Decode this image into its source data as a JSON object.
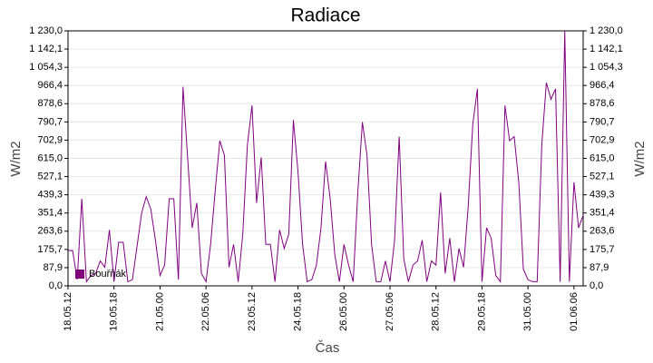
{
  "chart_data": {
    "type": "line",
    "title": "Radiace",
    "x_label": "Čas",
    "y_label": "W/m2",
    "x": [
      "18.05.12",
      "18.05.15",
      "18.05.18",
      "18.05.21",
      "19.05.00",
      "19.05.03",
      "19.05.06",
      "19.05.09",
      "19.05.12",
      "19.05.15",
      "19.05.18",
      "19.05.21",
      "20.05.00",
      "20.05.03",
      "20.05.06",
      "20.05.09",
      "20.05.12",
      "20.05.15",
      "20.05.18",
      "20.05.21",
      "21.05.00",
      "21.05.03",
      "21.05.06",
      "21.05.09",
      "21.05.12",
      "21.05.15",
      "21.05.18",
      "21.05.21",
      "22.05.00",
      "22.05.03",
      "22.05.06",
      "22.05.09",
      "22.05.12",
      "22.05.15",
      "22.05.18",
      "22.05.21",
      "23.05.00",
      "23.05.03",
      "23.05.06",
      "23.05.09",
      "23.05.12",
      "23.05.15",
      "23.05.18",
      "23.05.21",
      "24.05.00",
      "24.05.03",
      "24.05.06",
      "24.05.09",
      "24.05.12",
      "24.05.15",
      "24.05.18",
      "24.05.21",
      "25.05.00",
      "25.05.03",
      "25.05.06",
      "25.05.09",
      "25.05.12",
      "25.05.15",
      "25.05.18",
      "25.05.21",
      "26.05.00",
      "26.05.03",
      "26.05.06",
      "26.05.09",
      "26.05.12",
      "26.05.15",
      "26.05.18",
      "26.05.21",
      "27.05.00",
      "27.05.03",
      "27.05.06",
      "27.05.09",
      "27.05.12",
      "27.05.15",
      "27.05.18",
      "27.05.21",
      "28.05.00",
      "28.05.03",
      "28.05.06",
      "28.05.09",
      "28.05.12",
      "28.05.15",
      "28.05.18",
      "28.05.21",
      "29.05.00",
      "29.05.03",
      "29.05.06",
      "29.05.09",
      "29.05.12",
      "29.05.15",
      "29.05.18",
      "29.05.21",
      "30.05.00",
      "30.05.03",
      "30.05.06",
      "30.05.09",
      "30.05.12",
      "30.05.15",
      "30.05.18",
      "30.05.21",
      "31.05.00",
      "31.05.03",
      "31.05.06",
      "31.05.09",
      "31.05.12",
      "31.05.15",
      "31.05.18",
      "31.05.21",
      "01.06.00",
      "01.06.03",
      "01.06.06",
      "01.06.09",
      "01.06.12"
    ],
    "series": [
      {
        "name": "Bouřňák",
        "color": "#800080",
        "values": [
          170,
          170,
          30,
          420,
          20,
          50,
          60,
          120,
          90,
          270,
          20,
          210,
          210,
          20,
          30,
          190,
          350,
          430,
          370,
          220,
          50,
          100,
          420,
          420,
          30,
          960,
          620,
          280,
          400,
          60,
          20,
          200,
          460,
          700,
          630,
          90,
          200,
          20,
          250,
          680,
          870,
          400,
          620,
          200,
          200,
          20,
          270,
          180,
          250,
          800,
          550,
          200,
          20,
          30,
          100,
          280,
          600,
          420,
          150,
          20,
          200,
          100,
          20,
          450,
          790,
          630,
          200,
          20,
          20,
          120,
          20,
          220,
          720,
          130,
          20,
          100,
          120,
          220,
          20,
          120,
          100,
          450,
          60,
          230,
          20,
          180,
          90,
          380,
          780,
          950,
          20,
          280,
          230,
          50,
          20,
          870,
          700,
          720,
          500,
          80,
          30,
          20,
          20,
          680,
          980,
          900,
          950,
          20,
          1230,
          20,
          500,
          280,
          340
        ]
      }
    ],
    "xlim": [
      "18.05.12",
      "01.06.12"
    ],
    "xticks": [
      "18.05.12",
      "19.05.18",
      "21.05.00",
      "22.05.06",
      "23.05.12",
      "24.05.18",
      "26.05.00",
      "27.05.06",
      "28.05.12",
      "29.05.18",
      "31.05.00",
      "01.06.06"
    ],
    "ylim": [
      0,
      1230
    ],
    "yticks": [
      {
        "value": 0,
        "label": "0,0"
      },
      {
        "value": 87.86,
        "label": "87,9"
      },
      {
        "value": 175.71,
        "label": "175,7"
      },
      {
        "value": 263.57,
        "label": "263,6"
      },
      {
        "value": 351.43,
        "label": "351,4"
      },
      {
        "value": 439.29,
        "label": "439,3"
      },
      {
        "value": 527.14,
        "label": "527,1"
      },
      {
        "value": 615,
        "label": "615,0"
      },
      {
        "value": 702.86,
        "label": "702,9"
      },
      {
        "value": 790.71,
        "label": "790,7"
      },
      {
        "value": 878.57,
        "label": "878,6"
      },
      {
        "value": 966.43,
        "label": "966,4"
      },
      {
        "value": 1054.29,
        "label": "1 054,3"
      },
      {
        "value": 1142.14,
        "label": "1 142,1"
      },
      {
        "value": 1230,
        "label": "1 230,0"
      }
    ],
    "grid": true,
    "legend": "lower left"
  }
}
